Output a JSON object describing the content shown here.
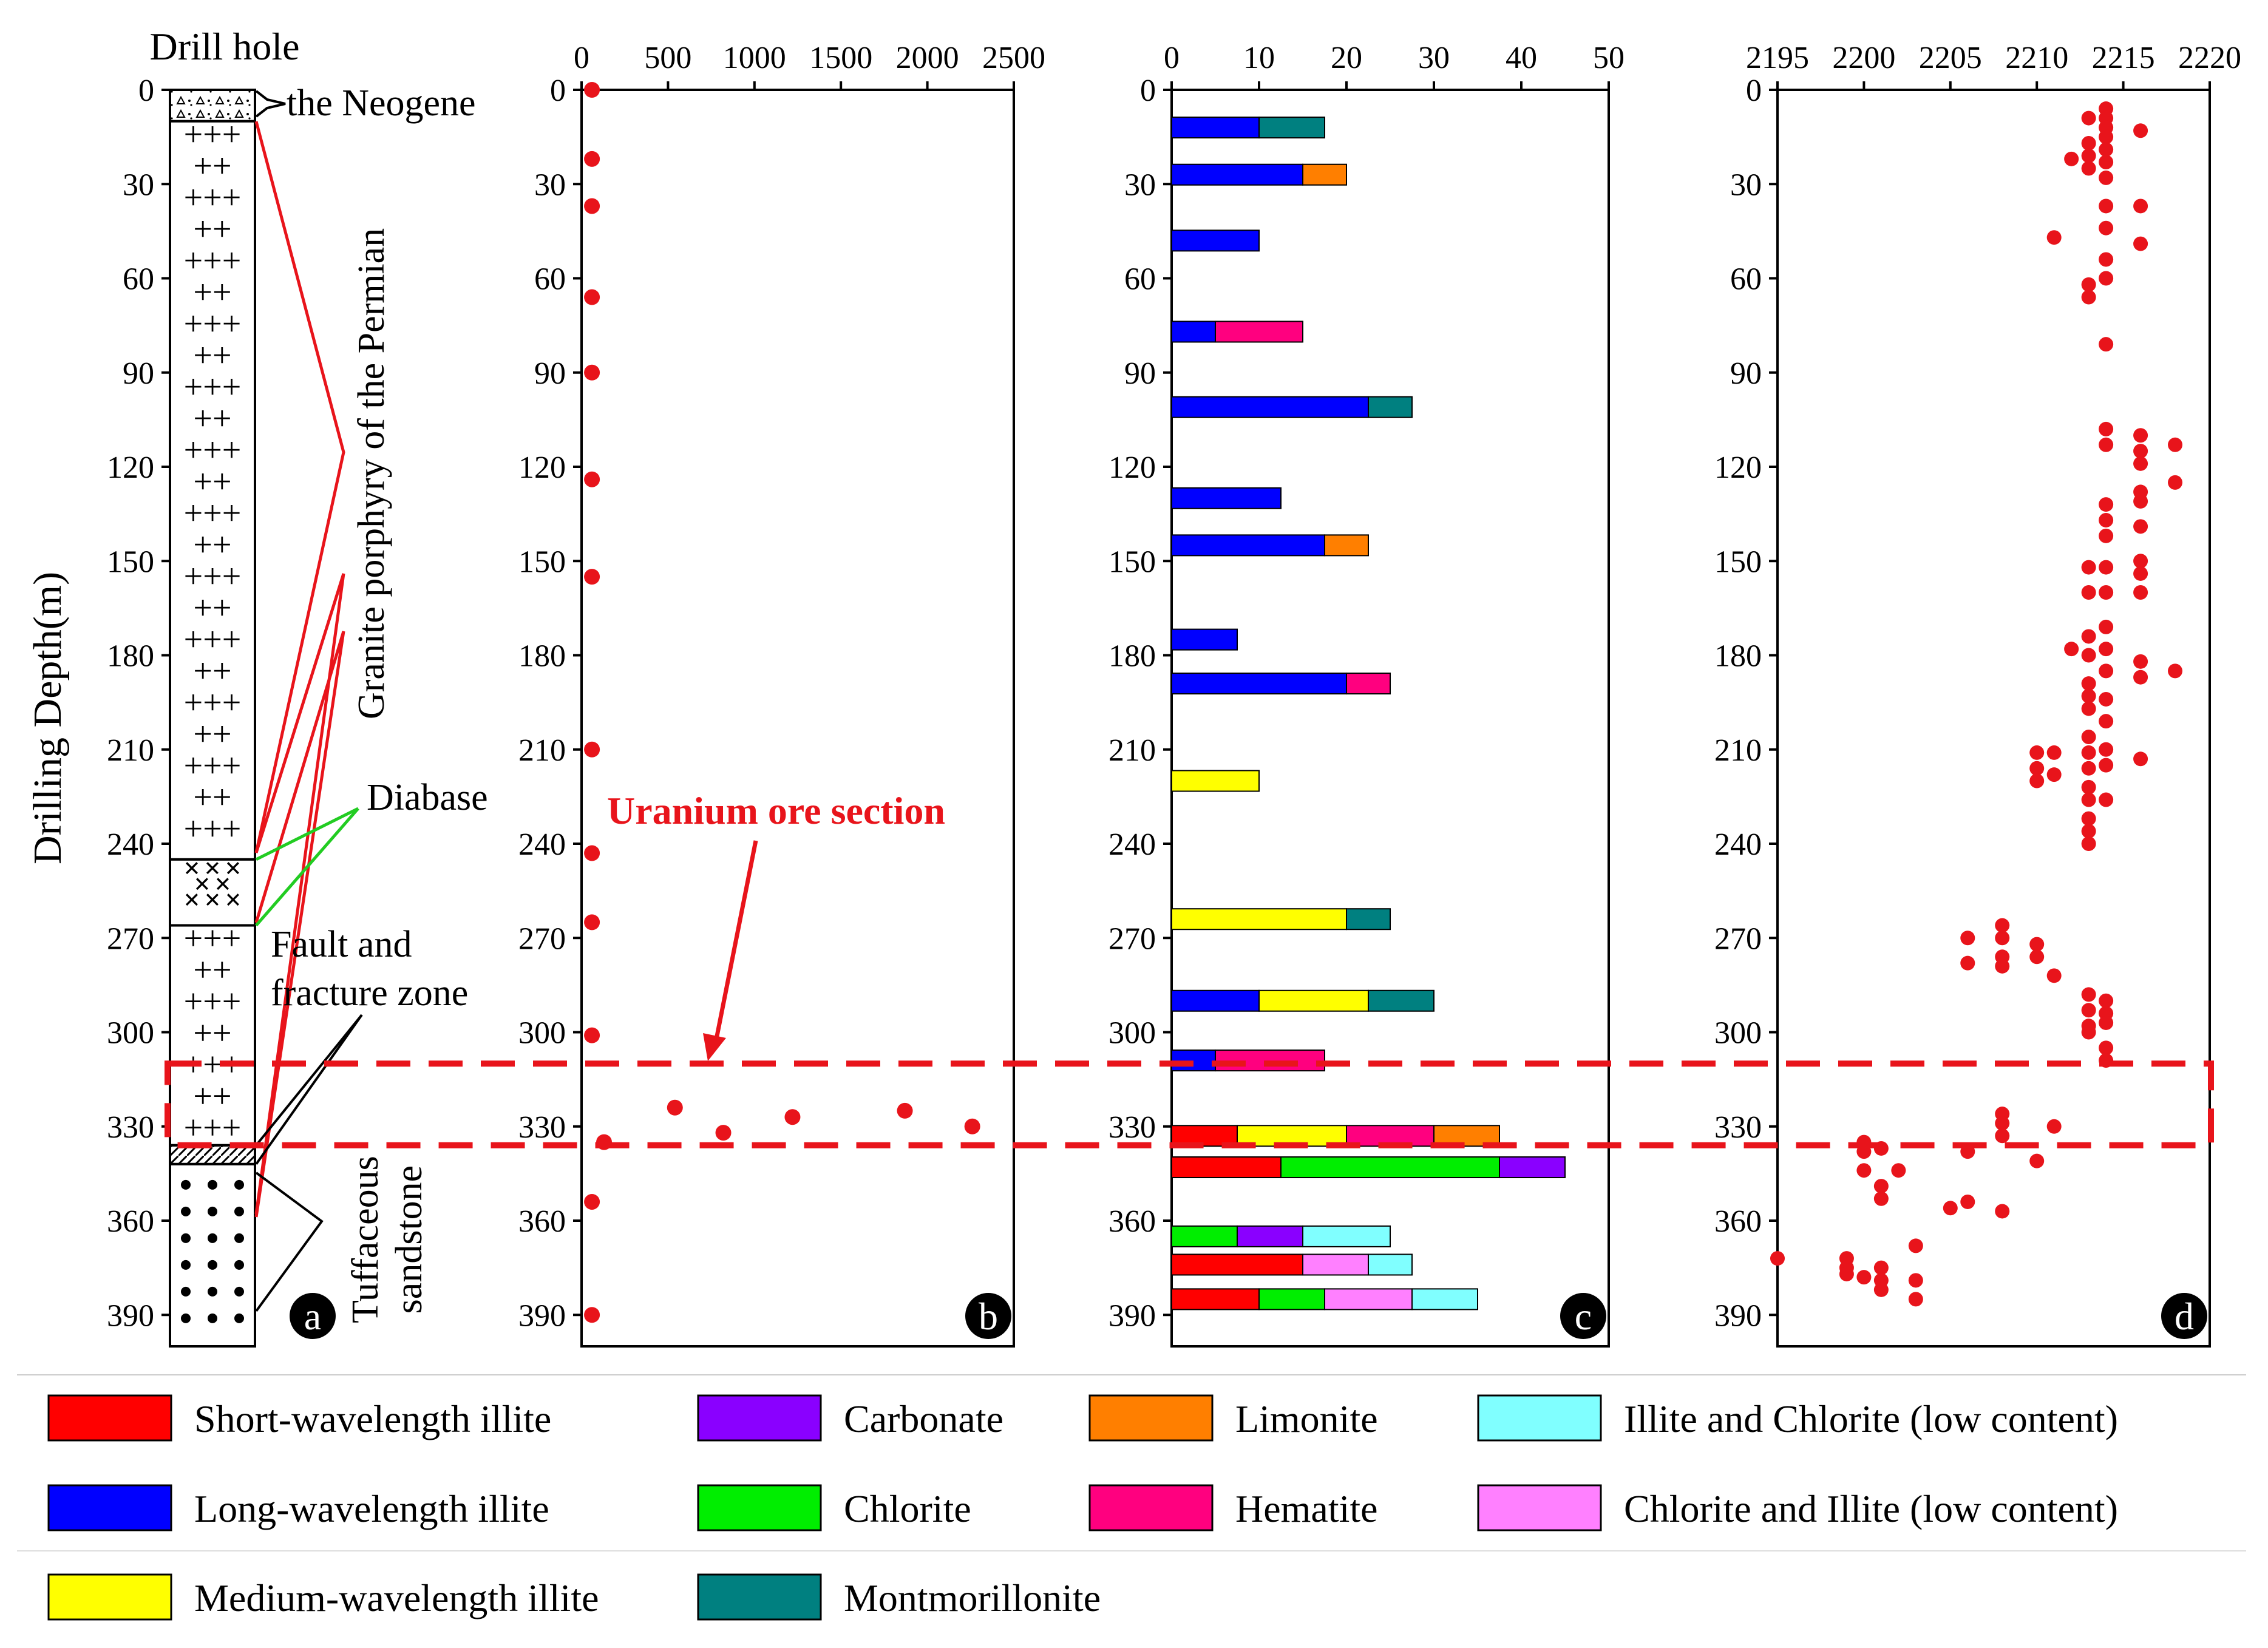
{
  "figure": {
    "drill_hole_title": "Drill hole",
    "y_axis_label": "Drilling Depth(m)",
    "depth_ticks": [
      0,
      30,
      60,
      90,
      120,
      150,
      180,
      210,
      240,
      270,
      300,
      330,
      360,
      390
    ],
    "depth_range": [
      0,
      400
    ],
    "ore_section_label": "Uranium ore section",
    "ore_section_depth": [
      310,
      336
    ],
    "colors": {
      "ore_box": "#e8141b",
      "fault_line": "#e8141b",
      "diabase_line": "#22cc22",
      "point": "#e8141b"
    }
  },
  "panel_a": {
    "letter": "a",
    "lithology": [
      {
        "name": "the Neogene",
        "from": 0,
        "to": 10,
        "pattern": "triangles"
      },
      {
        "name": "Granite porphyry of the Permian",
        "from": 10,
        "to": 245,
        "pattern": "plus"
      },
      {
        "name": "Diabase",
        "from": 245,
        "to": 266,
        "pattern": "cross"
      },
      {
        "name": "Granite porphyry of the Permian",
        "from": 266,
        "to": 336,
        "pattern": "plus"
      },
      {
        "name": "Fault and fracture zone",
        "from": 336,
        "to": 342,
        "pattern": "hatch"
      },
      {
        "name": "Tuffaceous sandstone",
        "from": 342,
        "to": 400,
        "pattern": "dots"
      }
    ],
    "labels": {
      "neogene": "the Neogene",
      "granite": "Granite porphyry of the Permian",
      "diabase": "Diabase",
      "fault_line1": "Fault and",
      "fault_line2": "fracture zone",
      "tuff_line1": "Tuffaceous",
      "tuff_line2": "sandstone"
    }
  },
  "chart_data": [
    {
      "type": "scatter",
      "panel": "b",
      "title": "",
      "xlabel": "",
      "ylabel": "Drilling Depth(m)",
      "xlim": [
        0,
        2500
      ],
      "xticks": [
        0,
        500,
        1000,
        1500,
        2000,
        2500
      ],
      "ylim": [
        0,
        400
      ],
      "points": [
        {
          "x": 60,
          "y": 0
        },
        {
          "x": 60,
          "y": 22
        },
        {
          "x": 60,
          "y": 37
        },
        {
          "x": 60,
          "y": 66
        },
        {
          "x": 60,
          "y": 90
        },
        {
          "x": 60,
          "y": 124
        },
        {
          "x": 60,
          "y": 155
        },
        {
          "x": 60,
          "y": 210
        },
        {
          "x": 60,
          "y": 243
        },
        {
          "x": 60,
          "y": 265
        },
        {
          "x": 60,
          "y": 301
        },
        {
          "x": 540,
          "y": 324
        },
        {
          "x": 820,
          "y": 332
        },
        {
          "x": 1220,
          "y": 327
        },
        {
          "x": 1870,
          "y": 325
        },
        {
          "x": 2260,
          "y": 330
        },
        {
          "x": 130,
          "y": 335
        },
        {
          "x": 60,
          "y": 354
        },
        {
          "x": 60,
          "y": 390
        }
      ]
    },
    {
      "type": "bar",
      "panel": "c",
      "orientation": "horizontal-stacked",
      "title": "",
      "xlabel": "",
      "ylabel": "Drilling Depth(m)",
      "xlim": [
        0,
        50
      ],
      "xticks": [
        0,
        10,
        20,
        30,
        40,
        50
      ],
      "ylim": [
        0,
        400
      ],
      "bars": [
        {
          "depth": 12,
          "segments": [
            {
              "mineral": "Long-wavelength illite",
              "value": 10
            },
            {
              "mineral": "Montmorillonite",
              "value": 7.5
            }
          ]
        },
        {
          "depth": 27,
          "segments": [
            {
              "mineral": "Long-wavelength illite",
              "value": 15
            },
            {
              "mineral": "Limonite",
              "value": 5
            }
          ]
        },
        {
          "depth": 48,
          "segments": [
            {
              "mineral": "Long-wavelength illite",
              "value": 10
            }
          ]
        },
        {
          "depth": 77,
          "segments": [
            {
              "mineral": "Long-wavelength illite",
              "value": 5
            },
            {
              "mineral": "Hematite",
              "value": 10
            }
          ]
        },
        {
          "depth": 101,
          "segments": [
            {
              "mineral": "Long-wavelength illite",
              "value": 22.5
            },
            {
              "mineral": "Montmorillonite",
              "value": 5
            }
          ]
        },
        {
          "depth": 130,
          "segments": [
            {
              "mineral": "Long-wavelength illite",
              "value": 12.5
            }
          ]
        },
        {
          "depth": 145,
          "segments": [
            {
              "mineral": "Long-wavelength illite",
              "value": 17.5
            },
            {
              "mineral": "Limonite",
              "value": 5
            }
          ]
        },
        {
          "depth": 175,
          "segments": [
            {
              "mineral": "Long-wavelength illite",
              "value": 7.5
            }
          ]
        },
        {
          "depth": 189,
          "segments": [
            {
              "mineral": "Long-wavelength illite",
              "value": 20
            },
            {
              "mineral": "Hematite",
              "value": 5
            }
          ]
        },
        {
          "depth": 220,
          "segments": [
            {
              "mineral": "Medium-wavelength illite",
              "value": 10
            }
          ]
        },
        {
          "depth": 264,
          "segments": [
            {
              "mineral": "Medium-wavelength illite",
              "value": 20
            },
            {
              "mineral": "Montmorillonite",
              "value": 5
            }
          ]
        },
        {
          "depth": 290,
          "segments": [
            {
              "mineral": "Long-wavelength illite",
              "value": 10
            },
            {
              "mineral": "Medium-wavelength illite",
              "value": 12.5
            },
            {
              "mineral": "Montmorillonite",
              "value": 7.5
            }
          ]
        },
        {
          "depth": 309,
          "segments": [
            {
              "mineral": "Long-wavelength illite",
              "value": 5
            },
            {
              "mineral": "Hematite",
              "value": 12.5
            }
          ]
        },
        {
          "depth": 333,
          "segments": [
            {
              "mineral": "Short-wavelength illite",
              "value": 7.5
            },
            {
              "mineral": "Medium-wavelength illite",
              "value": 12.5
            },
            {
              "mineral": "Hematite",
              "value": 10
            },
            {
              "mineral": "Limonite",
              "value": 7.5
            }
          ]
        },
        {
          "depth": 343,
          "segments": [
            {
              "mineral": "Short-wavelength illite",
              "value": 12.5
            },
            {
              "mineral": "Chlorite",
              "value": 25
            },
            {
              "mineral": "Carbonate",
              "value": 7.5
            }
          ]
        },
        {
          "depth": 365,
          "segments": [
            {
              "mineral": "Chlorite",
              "value": 7.5
            },
            {
              "mineral": "Carbonate",
              "value": 7.5
            },
            {
              "mineral": "Illite and Chlorite (low content)",
              "value": 10
            }
          ]
        },
        {
          "depth": 374,
          "segments": [
            {
              "mineral": "Short-wavelength illite",
              "value": 15
            },
            {
              "mineral": "Chlorite and Illite (low content)",
              "value": 7.5
            },
            {
              "mineral": "Illite and Chlorite (low content)",
              "value": 5
            }
          ]
        },
        {
          "depth": 385,
          "segments": [
            {
              "mineral": "Short-wavelength illite",
              "value": 10
            },
            {
              "mineral": "Chlorite",
              "value": 7.5
            },
            {
              "mineral": "Chlorite and Illite (low content)",
              "value": 10
            },
            {
              "mineral": "Illite and Chlorite (low content)",
              "value": 7.5
            }
          ]
        }
      ]
    },
    {
      "type": "scatter",
      "panel": "d",
      "title": "",
      "xlabel": "",
      "ylabel": "Drilling Depth(m)",
      "xlim": [
        2195,
        2220
      ],
      "xticks": [
        2195,
        2200,
        2205,
        2210,
        2215,
        2220
      ],
      "ylim": [
        0,
        400
      ],
      "points": [
        {
          "x": 2214,
          "y": 6
        },
        {
          "x": 2214,
          "y": 9
        },
        {
          "x": 2214,
          "y": 12
        },
        {
          "x": 2214,
          "y": 15
        },
        {
          "x": 2214,
          "y": 19
        },
        {
          "x": 2214,
          "y": 23
        },
        {
          "x": 2213,
          "y": 9
        },
        {
          "x": 2213,
          "y": 17
        },
        {
          "x": 2213,
          "y": 21
        },
        {
          "x": 2213,
          "y": 25
        },
        {
          "x": 2212,
          "y": 22
        },
        {
          "x": 2216,
          "y": 13
        },
        {
          "x": 2214,
          "y": 28
        },
        {
          "x": 2216,
          "y": 37
        },
        {
          "x": 2214,
          "y": 37
        },
        {
          "x": 2214,
          "y": 44
        },
        {
          "x": 2211,
          "y": 47
        },
        {
          "x": 2216,
          "y": 49
        },
        {
          "x": 2214,
          "y": 54
        },
        {
          "x": 2214,
          "y": 60
        },
        {
          "x": 2213,
          "y": 62
        },
        {
          "x": 2213,
          "y": 66
        },
        {
          "x": 2214,
          "y": 81
        },
        {
          "x": 2214,
          "y": 108
        },
        {
          "x": 2214,
          "y": 113
        },
        {
          "x": 2216,
          "y": 110
        },
        {
          "x": 2216,
          "y": 115
        },
        {
          "x": 2216,
          "y": 119
        },
        {
          "x": 2218,
          "y": 113
        },
        {
          "x": 2218,
          "y": 125
        },
        {
          "x": 2214,
          "y": 132
        },
        {
          "x": 2214,
          "y": 137
        },
        {
          "x": 2214,
          "y": 142
        },
        {
          "x": 2216,
          "y": 128
        },
        {
          "x": 2216,
          "y": 131
        },
        {
          "x": 2216,
          "y": 139
        },
        {
          "x": 2213,
          "y": 152
        },
        {
          "x": 2214,
          "y": 152
        },
        {
          "x": 2216,
          "y": 150
        },
        {
          "x": 2216,
          "y": 154
        },
        {
          "x": 2213,
          "y": 160
        },
        {
          "x": 2214,
          "y": 160
        },
        {
          "x": 2216,
          "y": 160
        },
        {
          "x": 2214,
          "y": 171
        },
        {
          "x": 2213,
          "y": 174
        },
        {
          "x": 2214,
          "y": 178
        },
        {
          "x": 2212,
          "y": 178
        },
        {
          "x": 2213,
          "y": 180
        },
        {
          "x": 2216,
          "y": 182
        },
        {
          "x": 2216,
          "y": 187
        },
        {
          "x": 2218,
          "y": 185
        },
        {
          "x": 2214,
          "y": 185
        },
        {
          "x": 2213,
          "y": 189
        },
        {
          "x": 2213,
          "y": 193
        },
        {
          "x": 2213,
          "y": 197
        },
        {
          "x": 2214,
          "y": 194
        },
        {
          "x": 2214,
          "y": 201
        },
        {
          "x": 2213,
          "y": 206
        },
        {
          "x": 2213,
          "y": 211
        },
        {
          "x": 2213,
          "y": 216
        },
        {
          "x": 2214,
          "y": 210
        },
        {
          "x": 2216,
          "y": 213
        },
        {
          "x": 2214,
          "y": 215
        },
        {
          "x": 2210,
          "y": 211
        },
        {
          "x": 2211,
          "y": 211
        },
        {
          "x": 2210,
          "y": 216
        },
        {
          "x": 2211,
          "y": 218
        },
        {
          "x": 2210,
          "y": 220
        },
        {
          "x": 2213,
          "y": 222
        },
        {
          "x": 2213,
          "y": 226
        },
        {
          "x": 2214,
          "y": 226
        },
        {
          "x": 2213,
          "y": 232
        },
        {
          "x": 2213,
          "y": 236
        },
        {
          "x": 2213,
          "y": 240
        },
        {
          "x": 2208,
          "y": 266
        },
        {
          "x": 2208,
          "y": 270
        },
        {
          "x": 2206,
          "y": 270
        },
        {
          "x": 2210,
          "y": 272
        },
        {
          "x": 2210,
          "y": 276
        },
        {
          "x": 2206,
          "y": 278
        },
        {
          "x": 2208,
          "y": 276
        },
        {
          "x": 2208,
          "y": 279
        },
        {
          "x": 2211,
          "y": 282
        },
        {
          "x": 2213,
          "y": 288
        },
        {
          "x": 2214,
          "y": 290
        },
        {
          "x": 2213,
          "y": 293
        },
        {
          "x": 2214,
          "y": 294
        },
        {
          "x": 2213,
          "y": 298
        },
        {
          "x": 2214,
          "y": 297
        },
        {
          "x": 2213,
          "y": 300
        },
        {
          "x": 2214,
          "y": 305
        },
        {
          "x": 2214,
          "y": 309
        },
        {
          "x": 2208,
          "y": 326
        },
        {
          "x": 2208,
          "y": 329
        },
        {
          "x": 2208,
          "y": 333
        },
        {
          "x": 2211,
          "y": 330
        },
        {
          "x": 2200,
          "y": 335
        },
        {
          "x": 2200,
          "y": 338
        },
        {
          "x": 2201,
          "y": 337
        },
        {
          "x": 2206,
          "y": 338
        },
        {
          "x": 2210,
          "y": 341
        },
        {
          "x": 2200,
          "y": 344
        },
        {
          "x": 2202,
          "y": 344
        },
        {
          "x": 2201,
          "y": 349
        },
        {
          "x": 2201,
          "y": 353
        },
        {
          "x": 2206,
          "y": 354
        },
        {
          "x": 2205,
          "y": 356
        },
        {
          "x": 2208,
          "y": 357
        },
        {
          "x": 2203,
          "y": 368
        },
        {
          "x": 2195,
          "y": 372
        },
        {
          "x": 2199,
          "y": 372
        },
        {
          "x": 2199,
          "y": 375
        },
        {
          "x": 2199,
          "y": 377
        },
        {
          "x": 2201,
          "y": 375
        },
        {
          "x": 2201,
          "y": 379
        },
        {
          "x": 2201,
          "y": 382
        },
        {
          "x": 2203,
          "y": 379
        },
        {
          "x": 2200,
          "y": 378
        },
        {
          "x": 2203,
          "y": 385
        }
      ]
    }
  ],
  "panel_letters": {
    "b": "b",
    "c": "c",
    "d": "d"
  },
  "legend": [
    {
      "label": "Short-wavelength illite",
      "color": "#ff0000"
    },
    {
      "label": "Carbonate",
      "color": "#8a00ff"
    },
    {
      "label": "Limonite",
      "color": "#ff7f00"
    },
    {
      "label": "Illite and Chlorite (low content)",
      "color": "#80ffff"
    },
    {
      "label": "Long-wavelength illite",
      "color": "#0000ff"
    },
    {
      "label": "Chlorite",
      "color": "#00ee00"
    },
    {
      "label": "Hematite",
      "color": "#ff007f"
    },
    {
      "label": "Chlorite and Illite (low content)",
      "color": "#ff80ff"
    },
    {
      "label": "Medium-wavelength illite",
      "color": "#ffff00"
    },
    {
      "label": "Montmorillonite",
      "color": "#008080"
    }
  ]
}
